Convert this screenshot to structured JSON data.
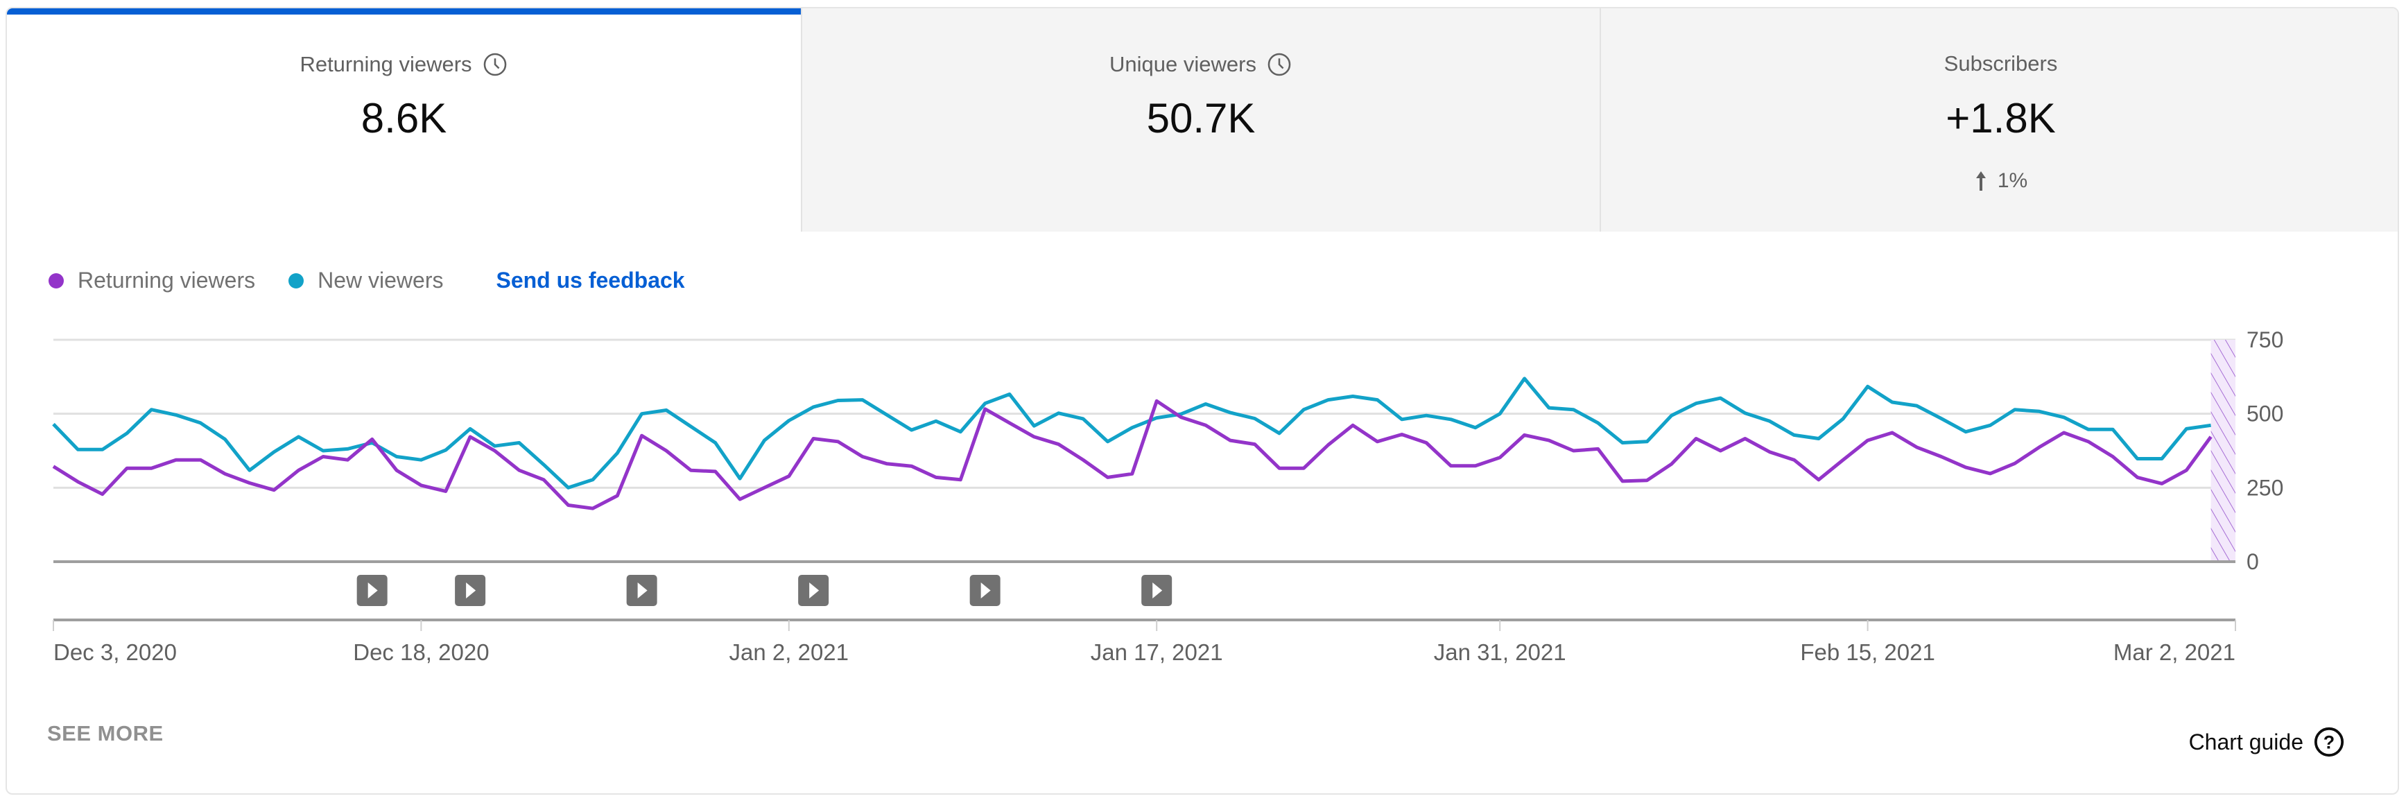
{
  "tabs": [
    {
      "label": "Returning viewers",
      "value": "8.6K",
      "icon": "clock-icon",
      "active": true
    },
    {
      "label": "Unique viewers",
      "value": "50.7K",
      "icon": "clock-icon",
      "active": false
    },
    {
      "label": "Subscribers",
      "value": "+1.8K",
      "delta": "1%",
      "delta_icon": "arrow-up-icon",
      "active": false
    }
  ],
  "legend": {
    "returning": "Returning viewers",
    "new": "New viewers",
    "feedback": "Send us feedback"
  },
  "footer": {
    "see_more": "SEE MORE",
    "chart_guide": "Chart guide"
  },
  "colors": {
    "returning": "#9334c9",
    "new": "#12a2c8",
    "accent": "#065fd4"
  },
  "chart_data": {
    "type": "line",
    "x_start": "Dec 3, 2020",
    "x_end": "Mar 2, 2021",
    "ylim": [
      0,
      750
    ],
    "y_ticks": [
      0,
      250,
      500,
      750
    ],
    "y_tick_labels": [
      "0",
      "250",
      "500",
      "750"
    ],
    "x_ticks": [
      {
        "day": 0,
        "label": "Dec 3, 2020"
      },
      {
        "day": 15,
        "label": "Dec 18, 2020"
      },
      {
        "day": 30,
        "label": "Jan 2, 2021"
      },
      {
        "day": 45,
        "label": "Jan 17, 2021"
      },
      {
        "day": 59,
        "label": "Jan 31, 2021"
      },
      {
        "day": 74,
        "label": "Feb 15, 2021"
      },
      {
        "day": 89,
        "label": "Mar 2, 2021"
      }
    ],
    "grid": true,
    "legend_position": "top-left",
    "incomplete_last_day": true,
    "video_markers_day": [
      13,
      17,
      24,
      31,
      38,
      45
    ],
    "series": [
      {
        "name": "Returning viewers",
        "values": [
          322,
          270,
          228,
          316,
          316,
          344,
          344,
          297,
          266,
          242,
          309,
          355,
          344,
          414,
          309,
          258,
          238,
          422,
          375,
          309,
          277,
          191,
          180,
          223,
          426,
          375,
          309,
          305,
          211,
          250,
          289,
          416,
          406,
          355,
          331,
          323,
          285,
          277,
          516,
          469,
          422,
          397,
          344,
          285,
          297,
          543,
          488,
          461,
          410,
          397,
          316,
          316,
          395,
          461,
          406,
          430,
          402,
          324,
          324,
          352,
          428,
          410,
          375,
          381,
          272,
          275,
          330,
          416,
          375,
          416,
          371,
          344,
          277,
          344,
          410,
          436,
          387,
          355,
          319,
          298,
          332,
          387,
          436,
          406,
          355,
          285,
          264,
          309,
          422
        ]
      },
      {
        "name": "New viewers",
        "values": [
          465,
          379,
          379,
          434,
          514,
          496,
          469,
          414,
          309,
          371,
          422,
          375,
          381,
          402,
          355,
          344,
          377,
          449,
          391,
          402,
          328,
          250,
          277,
          367,
          500,
          512,
          457,
          402,
          281,
          410,
          477,
          523,
          545,
          547,
          496,
          445,
          475,
          439,
          535,
          566,
          459,
          502,
          483,
          406,
          453,
          486,
          499,
          533,
          504,
          484,
          434,
          514,
          547,
          559,
          547,
          481,
          494,
          481,
          453,
          500,
          619,
          520,
          514,
          469,
          402,
          406,
          494,
          535,
          553,
          502,
          475,
          428,
          416,
          483,
          592,
          539,
          527,
          484,
          439,
          461,
          514,
          508,
          488,
          447,
          447,
          348,
          348,
          449,
          461
        ]
      }
    ]
  }
}
